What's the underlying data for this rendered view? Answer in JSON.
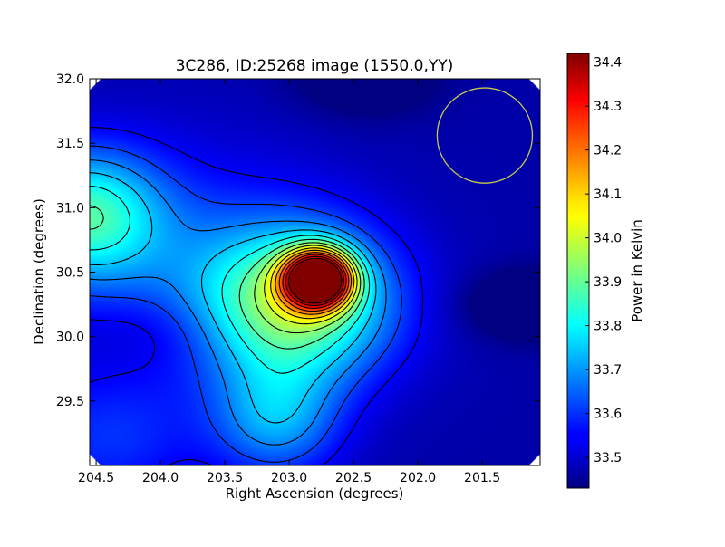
{
  "chart_data": {
    "type": "heatmap",
    "title": "3C286, ID:25268 image (1550.0,YY)",
    "xlabel": "Right Ascension (degrees)",
    "ylabel": "Declination (degrees)",
    "xlim": [
      204.55,
      201.05
    ],
    "ylim": [
      29.0,
      32.0
    ],
    "x_ticks": [
      "204.5",
      "204.0",
      "203.5",
      "203.0",
      "202.5",
      "202.0",
      "201.5"
    ],
    "y_ticks": [
      "29.5",
      "30.0",
      "30.5",
      "31.0",
      "31.5",
      "32.0"
    ],
    "colormap": "jet",
    "colorbar": {
      "label": "Power in Kelvin",
      "range": [
        33.43,
        34.42
      ],
      "ticks": [
        "33.5",
        "33.6",
        "33.7",
        "33.8",
        "33.9",
        "34.0",
        "34.1",
        "34.2",
        "34.3",
        "34.4"
      ]
    },
    "source_peak": {
      "ra": 202.78,
      "dec": 30.45,
      "value": 34.42
    },
    "beam_circle": {
      "ra": 201.48,
      "dec": 31.56,
      "radius_deg": 0.37,
      "color": "#c8c84a"
    },
    "grid": false
  }
}
